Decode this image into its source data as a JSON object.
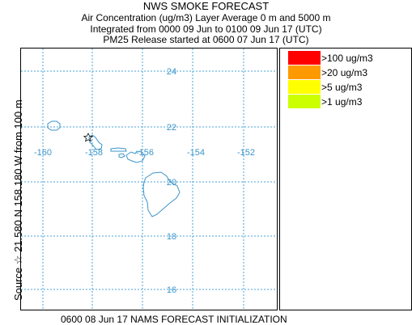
{
  "header": {
    "title": "NWS SMOKE FORECAST",
    "line1": "Air Concentration (ug/m3) Layer Average    0 m and  5000 m",
    "line2": "Integrated from 0000 09 Jun to 0100 09 Jun 17 (UTC)",
    "line3": "PM25 Release started at 0600 07 Jun 17 (UTC)"
  },
  "side_label": "Source ☆  21.580 N 158.180  W        from  100 m",
  "bottom_label": "0600 08 Jun 17 NAMS FORECAST INITIALIZATION",
  "map": {
    "lat_labels": [
      "24",
      "22",
      "20",
      "18",
      "16"
    ],
    "lon_labels": [
      "-160",
      "-158",
      "-156",
      "-154",
      "-152"
    ],
    "grid_color": "#4aa3d8",
    "label_color": "#3a95c9",
    "coast_color": "#3a95c9",
    "source_marker": "star-icon"
  },
  "legend": {
    "items": [
      {
        "label": ">100 ug/m3",
        "color": "#ff0000"
      },
      {
        "label": ">20 ug/m3",
        "color": "#ff9900"
      },
      {
        "label": ">5 ug/m3",
        "color": "#ffff00"
      },
      {
        "label": ">1 ug/m3",
        "color": "#ccff00"
      }
    ]
  }
}
